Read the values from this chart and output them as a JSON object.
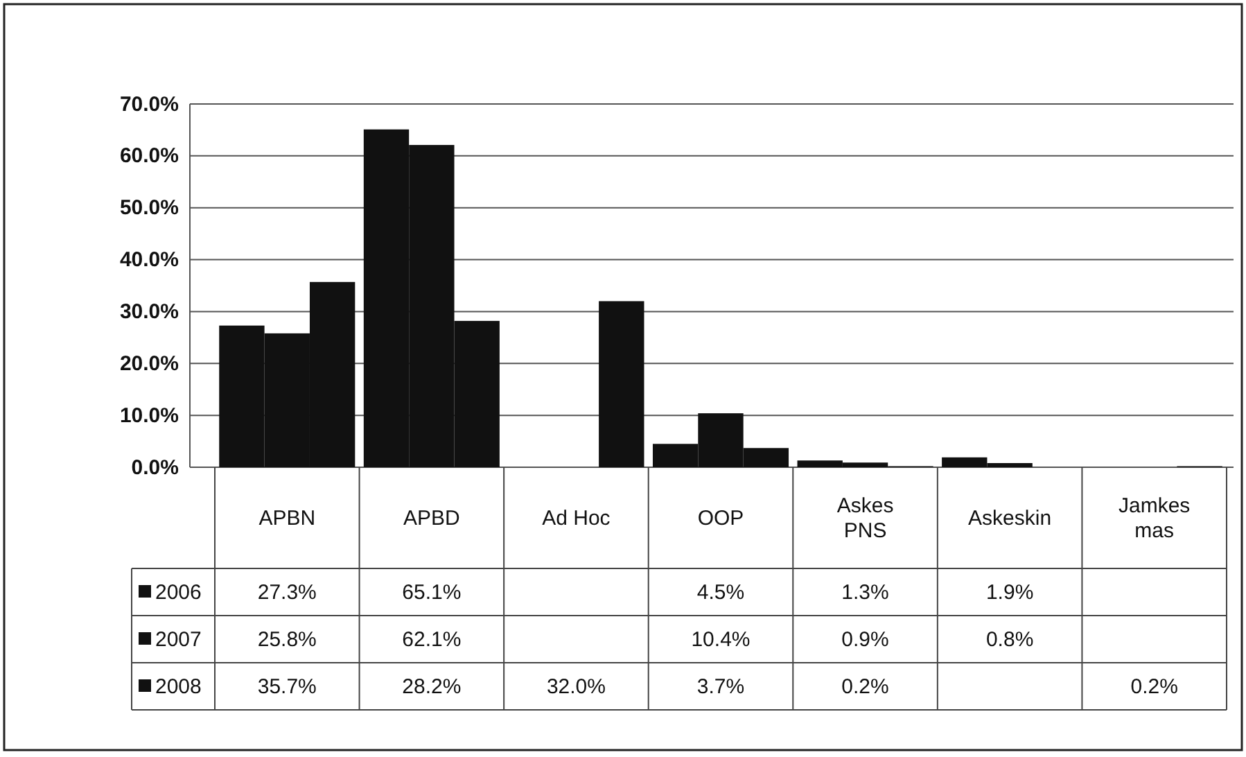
{
  "chart_data": {
    "type": "bar",
    "categories": [
      "APBN",
      "APBD",
      "Ad Hoc",
      "OOP",
      "Askes PNS",
      "Askeskin",
      "Jamkes mas"
    ],
    "series": [
      {
        "name": "2006",
        "color": "#111111",
        "values": [
          27.3,
          65.1,
          null,
          4.5,
          1.3,
          1.9,
          null
        ],
        "value_labels": [
          "27.3%",
          "65.1%",
          null,
          "4.5%",
          "1.3%",
          "1.9%",
          null
        ]
      },
      {
        "name": "2007",
        "color": "#111111",
        "values": [
          25.8,
          62.1,
          null,
          10.4,
          0.9,
          0.8,
          null
        ],
        "value_labels": [
          "25.8%",
          "62.1%",
          null,
          "10.4%",
          "0.9%",
          "0.8%",
          null
        ]
      },
      {
        "name": "2008",
        "color": "#111111",
        "values": [
          35.7,
          28.2,
          32.0,
          3.7,
          0.2,
          null,
          0.2
        ],
        "value_labels": [
          "35.7%",
          "28.2%",
          "32.0%",
          "3.7%",
          "0.2%",
          null,
          "0.2%"
        ]
      }
    ],
    "ylim": [
      0,
      70
    ],
    "yticks": [
      {
        "value": 0,
        "label": "0.0%"
      },
      {
        "value": 10,
        "label": "10.0%"
      },
      {
        "value": 20,
        "label": "20.0%"
      },
      {
        "value": 30,
        "label": "30.0%"
      },
      {
        "value": 40,
        "label": "40.0%"
      },
      {
        "value": 50,
        "label": "50.0%"
      },
      {
        "value": 60,
        "label": "60.0%"
      },
      {
        "value": 70,
        "label": "70.0%"
      }
    ],
    "grid": "y",
    "legend": "bottom"
  }
}
